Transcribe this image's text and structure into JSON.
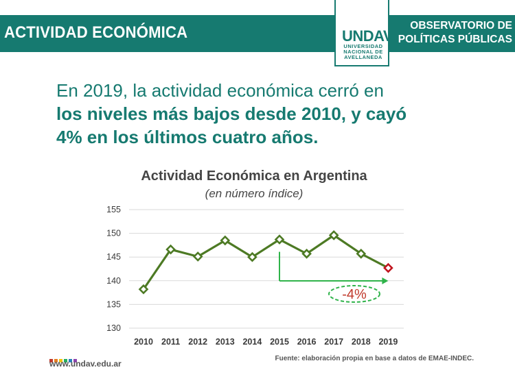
{
  "header": {
    "section_title": "ACTIVIDAD ECONÓMICA",
    "logo": {
      "mark": "UNDAV",
      "line1": "UNIVERSIDAD",
      "line2": "NACIONAL DE",
      "line3": "AVELLANEDA"
    },
    "observatory_line1": "OBSERVATORIO DE",
    "observatory_line2": "POLÍTICAS PÚBLICAS"
  },
  "headline": {
    "normal": "En 2019, la actividad económica cerró en",
    "bold1": "los niveles más bajos desde 2010, y cayó",
    "bold2": "4% en los últimos cuatro años",
    "period": "."
  },
  "colors": {
    "teal": "#167a70",
    "line": "#4d7a24",
    "highlight": "#c0141e",
    "annotation": "#2fb34a"
  },
  "chart_data": {
    "type": "line",
    "title": "Actividad Económica en Argentina",
    "subtitle": "(en número índice)",
    "xlabel": "",
    "ylabel": "",
    "categories": [
      "2010",
      "2011",
      "2012",
      "2013",
      "2014",
      "2015",
      "2016",
      "2017",
      "2018",
      "2019"
    ],
    "series": [
      {
        "name": "EMAE",
        "values": [
          138.2,
          146.6,
          145.1,
          148.5,
          145.0,
          148.7,
          145.7,
          149.6,
          145.7,
          142.7
        ]
      }
    ],
    "ylim": [
      130,
      155
    ],
    "yticks": [
      "155",
      "150",
      "145",
      "140",
      "135",
      "130"
    ],
    "grid": true,
    "highlight_point": "2019",
    "annotation": {
      "text": "-4%",
      "from": "2015",
      "to": "2019"
    }
  },
  "footer": {
    "url": "www.undav.edu.ar",
    "source": "Fuente: elaboración propia en base a datos de EMAE-INDEC.",
    "dot_colors": [
      "#c0392b",
      "#e67e22",
      "#f1c40f",
      "#27ae60",
      "#2980b9",
      "#8e44ad"
    ]
  }
}
